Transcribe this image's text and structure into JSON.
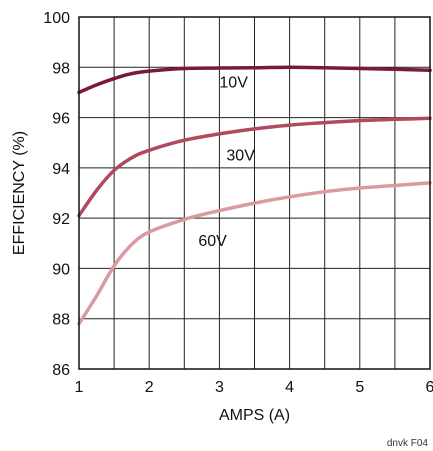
{
  "chart_data": {
    "type": "line",
    "title": "",
    "xlabel": "AMPS (A)",
    "ylabel": "EFFICIENCY (%)",
    "xlim": [
      1,
      6
    ],
    "ylim": [
      86,
      100
    ],
    "x_ticks": [
      "1",
      "2",
      "3",
      "4",
      "5",
      "6"
    ],
    "y_ticks": [
      "86",
      "88",
      "90",
      "92",
      "94",
      "96",
      "98",
      "100"
    ],
    "grid": true,
    "series": [
      {
        "name": "10V",
        "color": "#7a1a35",
        "x": [
          1.0,
          1.25,
          1.5,
          1.75,
          2.0,
          2.5,
          3.0,
          3.5,
          4.0,
          4.5,
          5.0,
          5.5,
          6.0
        ],
        "y": [
          97.0,
          97.3,
          97.55,
          97.75,
          97.85,
          97.95,
          97.97,
          97.98,
          98.0,
          97.98,
          97.95,
          97.92,
          97.88
        ]
      },
      {
        "name": "30V",
        "color": "#b04a5e",
        "x": [
          1.0,
          1.25,
          1.5,
          1.75,
          2.0,
          2.5,
          3.0,
          3.5,
          4.0,
          4.5,
          5.0,
          5.5,
          6.0
        ],
        "y": [
          92.1,
          93.1,
          93.9,
          94.4,
          94.7,
          95.1,
          95.35,
          95.55,
          95.7,
          95.8,
          95.88,
          95.93,
          95.97
        ]
      },
      {
        "name": "60V",
        "color": "#d99aa0",
        "x": [
          1.0,
          1.25,
          1.5,
          1.75,
          2.0,
          2.5,
          3.0,
          3.5,
          4.0,
          4.5,
          5.0,
          5.5,
          6.0
        ],
        "y": [
          87.8,
          88.9,
          90.1,
          90.95,
          91.45,
          91.95,
          92.3,
          92.6,
          92.85,
          93.05,
          93.2,
          93.3,
          93.4
        ]
      }
    ],
    "series_label_positions": [
      {
        "name": "10V",
        "x": 3.0,
        "y": 97.2
      },
      {
        "name": "30V",
        "x": 3.1,
        "y": 94.3
      },
      {
        "name": "60V",
        "x": 2.7,
        "y": 90.9
      }
    ],
    "corner_note": "dnvk F04"
  }
}
